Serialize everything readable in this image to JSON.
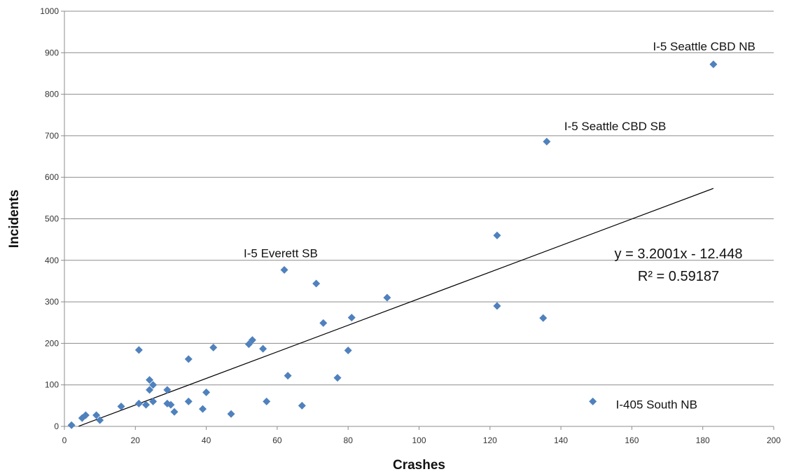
{
  "chart_data": {
    "type": "scatter",
    "xlabel": "Crashes",
    "ylabel": "Incidents",
    "xlim": [
      0,
      200
    ],
    "ylim": [
      0,
      1000
    ],
    "x_ticks": [
      "0",
      "20",
      "40",
      "60",
      "80",
      "100",
      "120",
      "140",
      "160",
      "180",
      "200"
    ],
    "y_ticks": [
      "0",
      "100",
      "200",
      "300",
      "400",
      "500",
      "600",
      "700",
      "800",
      "900",
      "1000"
    ],
    "grid": "horizontal",
    "marker_color": "#4f81bd",
    "trendline_color": "#000000",
    "points": [
      {
        "x": 2,
        "y": 3
      },
      {
        "x": 5,
        "y": 20
      },
      {
        "x": 6,
        "y": 27
      },
      {
        "x": 9,
        "y": 27
      },
      {
        "x": 10,
        "y": 15
      },
      {
        "x": 16,
        "y": 48
      },
      {
        "x": 21,
        "y": 55
      },
      {
        "x": 21,
        "y": 184
      },
      {
        "x": 23,
        "y": 52
      },
      {
        "x": 24,
        "y": 88
      },
      {
        "x": 24,
        "y": 112
      },
      {
        "x": 25,
        "y": 100
      },
      {
        "x": 25,
        "y": 60
      },
      {
        "x": 29,
        "y": 55
      },
      {
        "x": 29,
        "y": 88
      },
      {
        "x": 30,
        "y": 52
      },
      {
        "x": 31,
        "y": 35
      },
      {
        "x": 35,
        "y": 60
      },
      {
        "x": 35,
        "y": 162
      },
      {
        "x": 39,
        "y": 42
      },
      {
        "x": 40,
        "y": 82
      },
      {
        "x": 42,
        "y": 190
      },
      {
        "x": 47,
        "y": 30
      },
      {
        "x": 52,
        "y": 198
      },
      {
        "x": 53,
        "y": 208
      },
      {
        "x": 56,
        "y": 187
      },
      {
        "x": 57,
        "y": 60
      },
      {
        "x": 62,
        "y": 377
      },
      {
        "x": 63,
        "y": 122
      },
      {
        "x": 67,
        "y": 50
      },
      {
        "x": 71,
        "y": 344
      },
      {
        "x": 73,
        "y": 249
      },
      {
        "x": 77,
        "y": 117
      },
      {
        "x": 80,
        "y": 183
      },
      {
        "x": 81,
        "y": 262
      },
      {
        "x": 91,
        "y": 310
      },
      {
        "x": 122,
        "y": 460
      },
      {
        "x": 122,
        "y": 290
      },
      {
        "x": 135,
        "y": 261
      },
      {
        "x": 136,
        "y": 686
      },
      {
        "x": 149,
        "y": 60
      },
      {
        "x": 183,
        "y": 872
      }
    ],
    "trendline": {
      "slope": 3.2001,
      "intercept": -12.448,
      "x_start": 4,
      "x_end": 183
    },
    "equation": "y = 3.2001x - 12.448",
    "r_squared": "R² = 0.59187",
    "annotations": [
      {
        "text": "I-5 Seattle CBD NB",
        "x": 183,
        "y": 872
      },
      {
        "text": "I-5 Seattle CBD SB",
        "x": 136,
        "y": 686
      },
      {
        "text": "I-5 Everett SB",
        "x": 62,
        "y": 377
      },
      {
        "text": "I-405 South NB",
        "x": 149,
        "y": 60
      }
    ]
  }
}
